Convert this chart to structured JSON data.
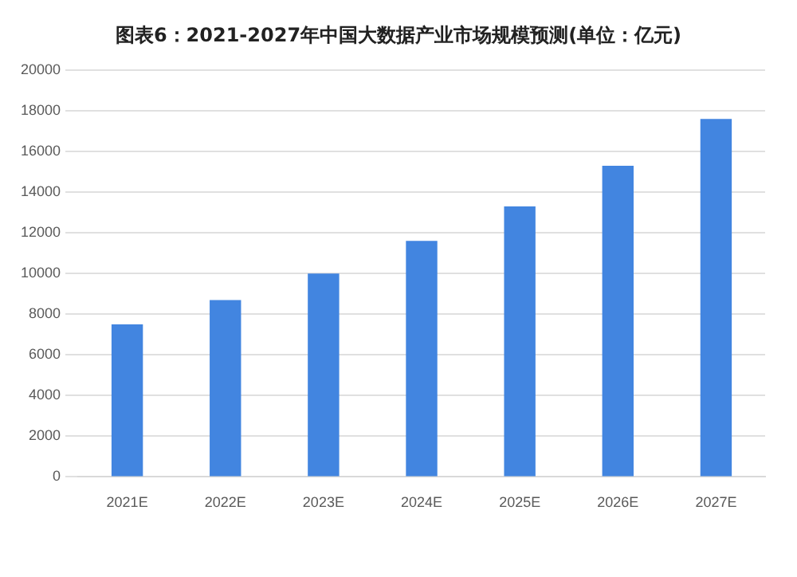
{
  "chart_data": {
    "type": "bar",
    "title": "图表6：2021-2027年中国大数据产业市场规模预测(单位：亿元)",
    "categories": [
      "2021E",
      "2022E",
      "2023E",
      "2024E",
      "2025E",
      "2026E",
      "2027E"
    ],
    "values": [
      7500,
      8700,
      10000,
      11600,
      13300,
      15300,
      17600
    ],
    "color": "#4285e0",
    "ylim": [
      0,
      20000
    ],
    "yticks": [
      0,
      2000,
      4000,
      6000,
      8000,
      10000,
      12000,
      14000,
      16000,
      18000,
      20000
    ],
    "grid": "y",
    "legend": false
  }
}
